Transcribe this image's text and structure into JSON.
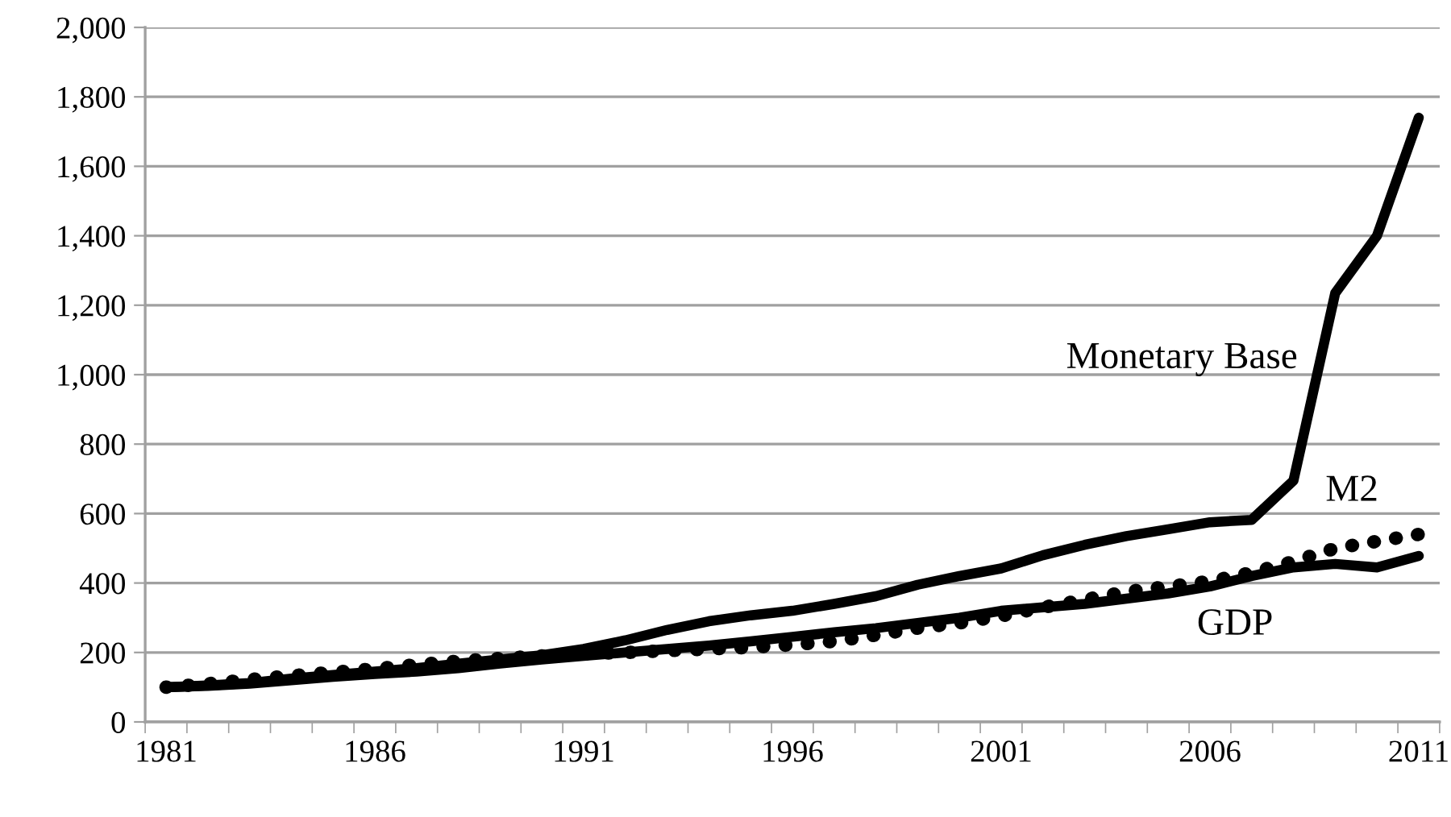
{
  "chart_data": {
    "type": "line",
    "categories": [
      "1981",
      null,
      null,
      null,
      null,
      "1986",
      null,
      null,
      null,
      null,
      "1991",
      null,
      null,
      null,
      null,
      "1996",
      null,
      null,
      null,
      null,
      "2001",
      null,
      null,
      null,
      null,
      "2006",
      null,
      null,
      null,
      null,
      "2011"
    ],
    "series": [
      {
        "name": "Monetary Base",
        "color": "#000000",
        "line_style": "solid",
        "values": [
          100,
          105,
          112,
          125,
          135,
          145,
          155,
          168,
          180,
          192,
          210,
          235,
          265,
          290,
          307,
          320,
          340,
          362,
          395,
          420,
          442,
          480,
          510,
          535,
          555,
          575,
          582,
          695,
          1235,
          1400,
          1740
        ]
      },
      {
        "name": "M2",
        "color": "#000000",
        "line_style": "dotted",
        "values": [
          100,
          110,
          122,
          133,
          143,
          153,
          165,
          175,
          183,
          190,
          196,
          200,
          205,
          210,
          215,
          222,
          232,
          250,
          270,
          285,
          305,
          330,
          352,
          375,
          390,
          405,
          430,
          462,
          500,
          520,
          540
        ]
      },
      {
        "name": "GDP",
        "color": "#000000",
        "line_style": "solid",
        "values": [
          100,
          104,
          110,
          120,
          130,
          138,
          145,
          155,
          168,
          180,
          190,
          200,
          210,
          220,
          232,
          245,
          258,
          270,
          285,
          300,
          320,
          330,
          340,
          355,
          370,
          390,
          420,
          445,
          455,
          445,
          478
        ]
      }
    ],
    "ylim": [
      0,
      2000
    ],
    "yticks": [
      {
        "value": 0,
        "label": "0"
      },
      {
        "value": 200,
        "label": "200"
      },
      {
        "value": 400,
        "label": "400"
      },
      {
        "value": 600,
        "label": "600"
      },
      {
        "value": 800,
        "label": "800"
      },
      {
        "value": 1000,
        "label": "1,000"
      },
      {
        "value": 1200,
        "label": "1,200"
      },
      {
        "value": 1400,
        "label": "1,400"
      },
      {
        "value": 1600,
        "label": "1,600"
      },
      {
        "value": 1800,
        "label": "1,800"
      },
      {
        "value": 2000,
        "label": "2,000"
      }
    ],
    "grid": "y",
    "legend": false,
    "marker": "none"
  }
}
